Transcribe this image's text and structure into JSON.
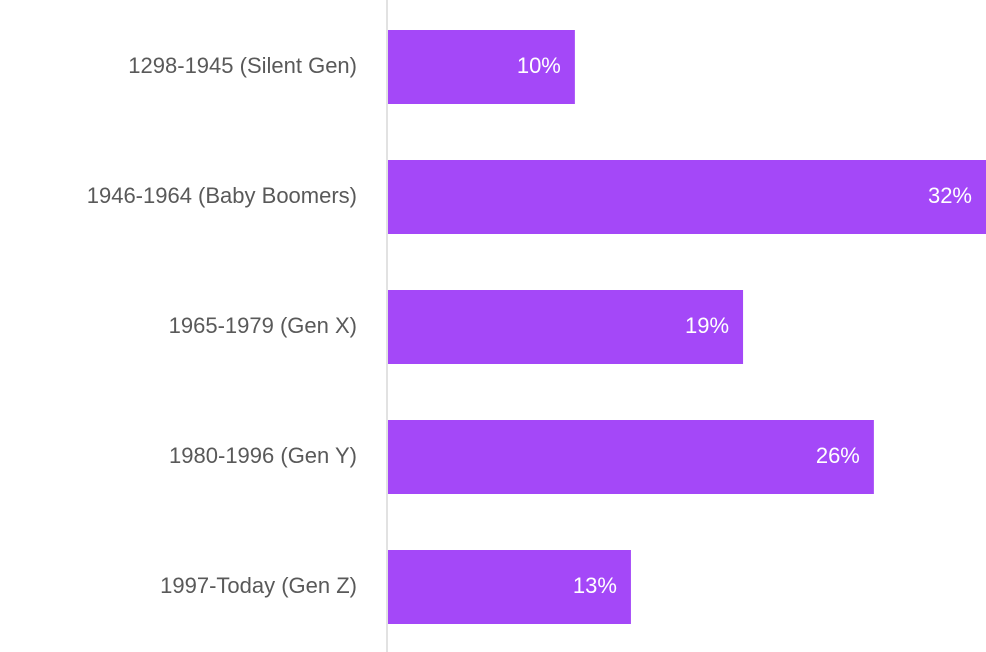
{
  "chart_data": {
    "type": "hbar",
    "categories": [
      "1298-1945 (Silent Gen)",
      "1946-1964 (Baby Boomers)",
      "1965-1979 (Gen X)",
      "1980-1996 (Gen Y)",
      "1997-Today (Gen Z)"
    ],
    "values": [
      10,
      32,
      19,
      26,
      13
    ],
    "value_labels": [
      "10%",
      "32%",
      "19%",
      "26%",
      "13%"
    ],
    "color": "#a448f8",
    "xlim": [
      0,
      32
    ]
  }
}
